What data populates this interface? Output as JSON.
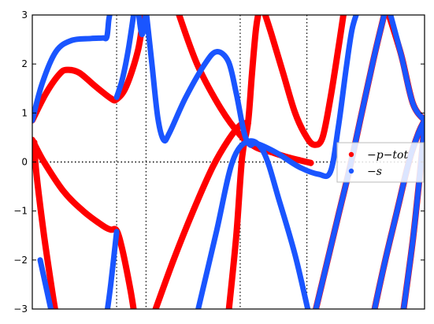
{
  "chart_data": {
    "type": "scatter",
    "title": "",
    "xlabel": "",
    "ylabel": "",
    "xlim": [
      0,
      10
    ],
    "ylim": [
      -3,
      3
    ],
    "yticks": [
      -3,
      -2,
      -1,
      0,
      1,
      2,
      3
    ],
    "ytick_labels": [
      "−3",
      "−2",
      "−1",
      "0",
      "1",
      "2",
      "3"
    ],
    "vlines_x": [
      2.15,
      2.9,
      5.3,
      7.0
    ],
    "hline_y": 0,
    "grid": "dotted reference lines",
    "legend": {
      "placement": "center-right",
      "entries": [
        {
          "label": "−p−tot",
          "color": "#ff0000"
        },
        {
          "label": "−s",
          "color": "#1a55ff"
        }
      ]
    },
    "series": [
      {
        "color": "#ff0000",
        "width": 8,
        "curves": [
          [
            [
              0,
              0.85
            ],
            [
              0.35,
              1.4
            ],
            [
              0.7,
              1.8
            ],
            [
              0.9,
              1.88
            ],
            [
              1.2,
              1.82
            ],
            [
              1.6,
              1.55
            ],
            [
              2.0,
              1.3
            ],
            [
              2.15,
              1.28
            ],
            [
              2.4,
              1.55
            ],
            [
              2.7,
              2.3
            ],
            [
              2.85,
              3.1
            ]
          ],
          [
            [
              0,
              0.45
            ],
            [
              0.3,
              0.0
            ],
            [
              0.8,
              -0.6
            ],
            [
              1.3,
              -1.0
            ],
            [
              1.8,
              -1.3
            ],
            [
              2.0,
              -1.38
            ],
            [
              2.15,
              -1.4
            ],
            [
              2.3,
              -1.8
            ],
            [
              2.5,
              -2.6
            ],
            [
              2.6,
              -3.1
            ]
          ],
          [
            [
              0.05,
              0.4
            ],
            [
              0.1,
              -0.2
            ],
            [
              0.3,
              -1.5
            ],
            [
              0.5,
              -2.6
            ],
            [
              0.6,
              -3.1
            ]
          ],
          [
            [
              3.7,
              3.1
            ],
            [
              4.2,
              2.0
            ],
            [
              4.8,
              1.1
            ],
            [
              5.3,
              0.55
            ],
            [
              5.7,
              0.3
            ],
            [
              6.1,
              0.2
            ],
            [
              6.5,
              0.1
            ],
            [
              7.1,
              -0.02
            ]
          ],
          [
            [
              3.1,
              -3.1
            ],
            [
              3.6,
              -2.0
            ],
            [
              4.1,
              -1.0
            ],
            [
              4.6,
              -0.1
            ],
            [
              5.0,
              0.45
            ],
            [
              5.3,
              0.75
            ],
            [
              5.5,
              0.8
            ]
          ],
          [
            [
              5.0,
              -3.1
            ],
            [
              5.2,
              -1.5
            ],
            [
              5.35,
              0.1
            ],
            [
              5.5,
              0.8
            ],
            [
              5.6,
              1.8
            ],
            [
              5.7,
              2.7
            ],
            [
              5.78,
              3.1
            ]
          ],
          [
            [
              5.9,
              3.1
            ],
            [
              6.1,
              2.6
            ],
            [
              6.4,
              1.8
            ],
            [
              6.7,
              1.0
            ],
            [
              7.0,
              0.5
            ],
            [
              7.2,
              0.35
            ],
            [
              7.4,
              0.5
            ],
            [
              7.6,
              1.3
            ],
            [
              7.8,
              2.3
            ],
            [
              7.95,
              3.1
            ]
          ],
          [
            [
              7.2,
              -3.1
            ],
            [
              7.5,
              -2.1
            ],
            [
              7.8,
              -1.1
            ],
            [
              8.1,
              -0.1
            ],
            [
              8.4,
              1.0
            ],
            [
              8.7,
              2.1
            ],
            [
              9.0,
              3.1
            ]
          ],
          [
            [
              9.05,
              3.1
            ],
            [
              9.4,
              2.2
            ],
            [
              9.7,
              1.2
            ],
            [
              10.0,
              0.85
            ]
          ],
          [
            [
              8.7,
              -3.1
            ],
            [
              9.0,
              -2.0
            ],
            [
              9.3,
              -1.0
            ],
            [
              9.6,
              0.0
            ],
            [
              9.85,
              0.6
            ],
            [
              10.0,
              0.85
            ]
          ],
          [
            [
              9.45,
              -3.1
            ],
            [
              9.7,
              -1.6
            ],
            [
              9.9,
              -0.1
            ],
            [
              10.0,
              0.8
            ]
          ]
        ]
      },
      {
        "color": "#1a55ff",
        "width": 7,
        "curves": [
          [
            [
              0,
              0.85
            ],
            [
              0.25,
              1.6
            ],
            [
              0.6,
              2.25
            ],
            [
              1.0,
              2.48
            ],
            [
              1.5,
              2.52
            ],
            [
              1.8,
              2.53
            ],
            [
              1.9,
              2.55
            ],
            [
              1.95,
              2.9
            ],
            [
              2.0,
              3.1
            ]
          ],
          [
            [
              2.9,
              3.1
            ],
            [
              3.05,
              2.0
            ],
            [
              3.2,
              0.9
            ],
            [
              3.35,
              0.45
            ],
            [
              3.5,
              0.6
            ],
            [
              3.9,
              1.3
            ],
            [
              4.4,
              2.0
            ],
            [
              4.7,
              2.25
            ],
            [
              5.0,
              2.05
            ],
            [
              5.2,
              1.4
            ],
            [
              5.4,
              0.6
            ],
            [
              5.55,
              0.35
            ],
            [
              5.7,
              0.38
            ],
            [
              6.2,
              0.2
            ],
            [
              6.8,
              -0.1
            ],
            [
              7.3,
              -0.25
            ],
            [
              7.6,
              -0.2
            ],
            [
              7.8,
              0.7
            ],
            [
              8.0,
              1.9
            ],
            [
              8.15,
              2.7
            ],
            [
              8.3,
              3.1
            ]
          ],
          [
            [
              2.6,
              3.1
            ],
            [
              2.45,
              2.3
            ],
            [
              2.3,
              1.7
            ],
            [
              2.15,
              1.32
            ]
          ],
          [
            [
              2.7,
              3.1
            ],
            [
              2.8,
              2.6
            ],
            [
              2.9,
              3.1
            ]
          ],
          [
            [
              4.2,
              -3.1
            ],
            [
              4.7,
              -1.4
            ],
            [
              5.1,
              0.0
            ],
            [
              5.5,
              0.42
            ],
            [
              5.9,
              0.2
            ],
            [
              6.3,
              -0.8
            ],
            [
              6.7,
              -1.9
            ],
            [
              7.05,
              -3.1
            ]
          ],
          [
            [
              1.9,
              -3.1
            ],
            [
              2.0,
              -2.5
            ],
            [
              2.15,
              -1.42
            ]
          ],
          [
            [
              0.2,
              -2.0
            ],
            [
              0.5,
              -3.1
            ]
          ],
          [
            [
              7.2,
              -3.1
            ],
            [
              7.5,
              -2.1
            ],
            [
              7.8,
              -1.1
            ],
            [
              8.1,
              -0.1
            ],
            [
              8.4,
              1.0
            ],
            [
              8.7,
              2.1
            ],
            [
              9.0,
              3.1
            ]
          ],
          [
            [
              8.7,
              -3.1
            ],
            [
              9.0,
              -2.0
            ],
            [
              9.3,
              -1.0
            ],
            [
              9.6,
              0.0
            ],
            [
              9.85,
              0.6
            ],
            [
              10.0,
              0.85
            ]
          ],
          [
            [
              9.45,
              -3.1
            ],
            [
              9.7,
              -1.6
            ],
            [
              9.9,
              -0.1
            ],
            [
              10.0,
              0.8
            ]
          ],
          [
            [
              9.1,
              3.1
            ],
            [
              9.4,
              2.2
            ],
            [
              9.7,
              1.2
            ],
            [
              10.0,
              0.85
            ]
          ]
        ]
      }
    ]
  }
}
